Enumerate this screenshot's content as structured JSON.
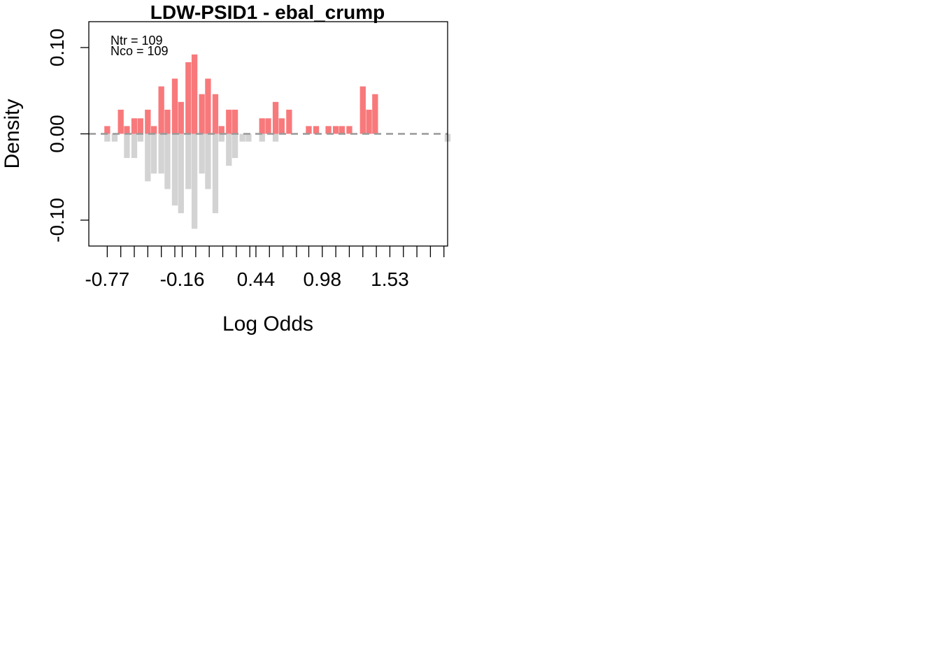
{
  "chart_data": {
    "type": "bar",
    "title": "LDW-PSID1 - ebal_crump",
    "xlabel": "Log Odds",
    "ylabel": "Density",
    "annotations": [
      "Ntr =  109",
      "Nco =  109"
    ],
    "xlim": [
      -0.92,
      2.0
    ],
    "ylim": [
      -0.13,
      0.13
    ],
    "y_ticks": [
      -0.1,
      0.0,
      0.1
    ],
    "y_tick_labels": [
      "-0.10",
      "0.00",
      "0.10"
    ],
    "x_tick_labels": [
      "-0.77",
      "-0.16",
      "0.44",
      "0.98",
      "1.53"
    ],
    "x_tick_values": [
      -0.77,
      -0.16,
      0.44,
      0.98,
      1.53
    ],
    "x_minor_ticks": [
      -0.77,
      -0.66,
      -0.55,
      -0.44,
      -0.33,
      -0.22,
      -0.16,
      -0.05,
      0.06,
      0.17,
      0.28,
      0.39,
      0.44,
      0.55,
      0.66,
      0.77,
      0.87,
      0.98,
      1.09,
      1.2,
      1.31,
      1.42,
      1.53,
      1.64,
      1.75,
      1.86,
      1.97
    ],
    "bin_width": 0.0542,
    "reference_line": {
      "y": 0,
      "style": "dashed",
      "color": "#999999"
    },
    "colors": {
      "treated": "#f8797b",
      "control": "#d3d3d3",
      "axis": "#000000"
    },
    "series": [
      {
        "name": "treated",
        "direction": "up",
        "x": [
          -0.77,
          -0.71,
          -0.66,
          -0.61,
          -0.55,
          -0.5,
          -0.44,
          -0.39,
          -0.33,
          -0.28,
          -0.22,
          -0.17,
          -0.11,
          -0.06,
          0.0,
          0.05,
          0.11,
          0.16,
          0.22,
          0.27,
          0.33,
          0.49,
          0.54,
          0.6,
          0.65,
          0.71,
          0.87,
          0.93,
          1.03,
          1.09,
          1.14,
          1.2,
          1.31,
          1.36,
          1.41
        ],
        "values": [
          0.009,
          0.0,
          0.028,
          0.009,
          0.018,
          0.018,
          0.028,
          0.009,
          0.055,
          0.028,
          0.064,
          0.037,
          0.083,
          0.092,
          0.046,
          0.064,
          0.046,
          0.009,
          0.028,
          0.028,
          0.0,
          0.018,
          0.018,
          0.037,
          0.018,
          0.028,
          0.009,
          0.009,
          0.009,
          0.009,
          0.009,
          0.009,
          0.055,
          0.028,
          0.046
        ]
      },
      {
        "name": "control",
        "direction": "down",
        "x": [
          -0.77,
          -0.71,
          -0.61,
          -0.55,
          -0.5,
          -0.44,
          -0.39,
          -0.33,
          -0.28,
          -0.22,
          -0.17,
          -0.11,
          -0.06,
          0.0,
          0.05,
          0.11,
          0.16,
          0.22,
          0.27,
          0.33,
          0.38,
          0.49,
          0.6,
          2.0
        ],
        "values": [
          0.009,
          0.009,
          0.028,
          0.028,
          0.009,
          0.055,
          0.046,
          0.046,
          0.064,
          0.083,
          0.092,
          0.064,
          0.11,
          0.046,
          0.064,
          0.092,
          0.009,
          0.037,
          0.028,
          0.009,
          0.009,
          0.009,
          0.009,
          0.009
        ]
      }
    ]
  }
}
